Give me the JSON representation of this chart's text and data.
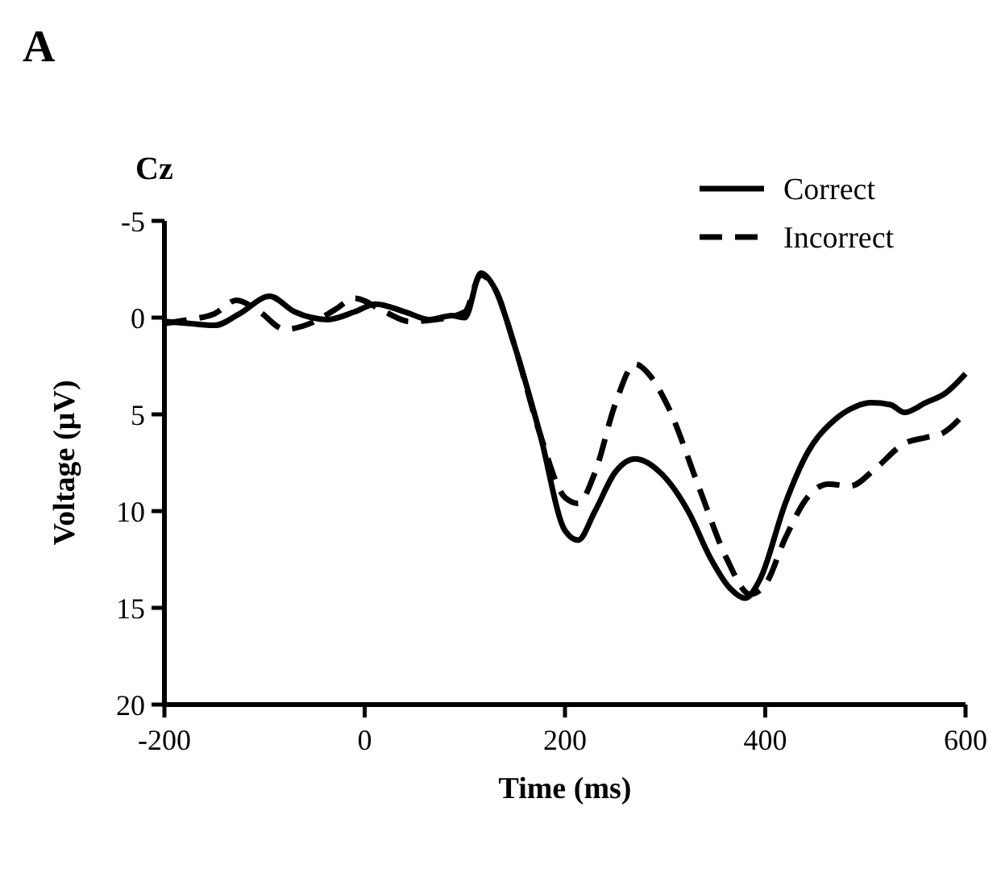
{
  "chart_data": {
    "type": "line",
    "title": "Cz",
    "xlabel": "Time (ms)",
    "ylabel": "Voltage (µV)",
    "annotations": [
      "A"
    ],
    "xlim": [
      -200,
      600
    ],
    "xticks": [
      -200,
      0,
      200,
      400,
      600
    ],
    "ylim": [
      20,
      -5
    ],
    "yticks": [
      -5,
      0,
      5,
      10,
      15,
      20
    ],
    "legend": "top right",
    "grid": false,
    "series": [
      {
        "name": "Correct",
        "color": "#000000",
        "line_style": "solid",
        "x": [
          -200,
          -175,
          -150,
          -125,
          -95,
          -70,
          -37,
          -10,
          11,
          40,
          65,
          87,
          100,
          116,
          130,
          150,
          175,
          200,
          213,
          230,
          250,
          270,
          297,
          324,
          345,
          365,
          380,
          395,
          420,
          442,
          469,
          490,
          506,
          525,
          539,
          560,
          580,
          600
        ],
        "values": [
          0.2,
          0.3,
          0.4,
          -0.2,
          -1.1,
          -0.3,
          0.1,
          -0.3,
          -0.7,
          -0.3,
          0.1,
          -0.1,
          0,
          -2.3,
          -1.5,
          1.5,
          6,
          11,
          11.5,
          10,
          8,
          7.3,
          8.1,
          10.1,
          12.4,
          14,
          14.5,
          13.5,
          9.6,
          7,
          5.3,
          4.6,
          4.4,
          4.5,
          4.9,
          4.4,
          3.9,
          2.9
        ]
      },
      {
        "name": "Incorrect",
        "color": "#000000",
        "line_style": "dashed",
        "x": [
          -200,
          -175,
          -150,
          -128,
          -105,
          -80,
          -50,
          -30,
          -10,
          20,
          45,
          71,
          100,
          116,
          130,
          150,
          175,
          200,
          213,
          230,
          250,
          270,
          285,
          302,
          334,
          361,
          385,
          400,
          420,
          442,
          463,
          485,
          510,
          539,
          560,
          576,
          600
        ],
        "values": [
          0.3,
          0.1,
          -0.2,
          -0.9,
          -0.3,
          0.6,
          0.2,
          -0.4,
          -1,
          -0.3,
          0.2,
          0.1,
          -0.3,
          -2.2,
          -1.5,
          1.5,
          6,
          9.3,
          9.6,
          8,
          4.5,
          2.4,
          3,
          4.5,
          8.8,
          12.4,
          14.3,
          13.8,
          11.4,
          9.3,
          8.6,
          8.7,
          7.8,
          6.5,
          6.2,
          6,
          4.9
        ]
      }
    ]
  }
}
